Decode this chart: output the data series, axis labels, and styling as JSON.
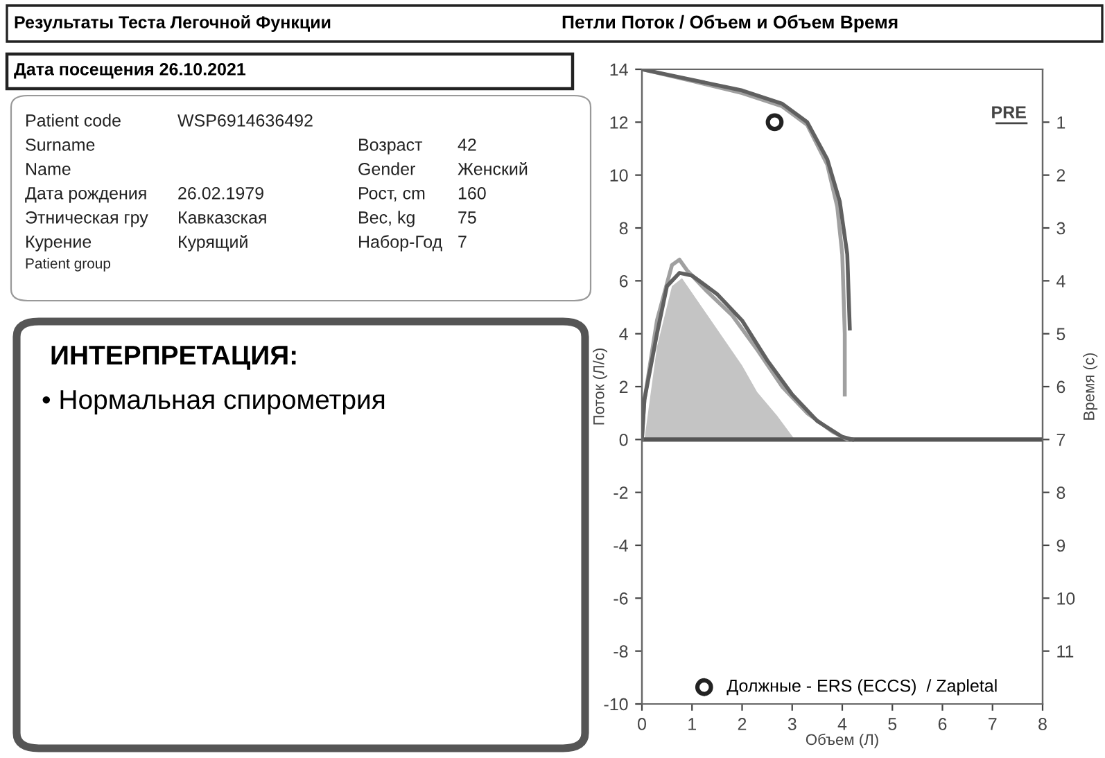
{
  "chart_data": {
    "type": "line",
    "title": "Петли Поток / Объем и Объем Время",
    "xlabel": "Объем (Л)",
    "ylabel": "Поток (Л/с)",
    "y2label": "Время (с)",
    "xlim": [
      0,
      8
    ],
    "xticks": [
      0,
      1,
      2,
      3,
      4,
      5,
      6,
      7,
      8
    ],
    "ylim": [
      -10,
      14
    ],
    "yticks": [
      -10,
      -8,
      -6,
      -4,
      -2,
      0,
      2,
      4,
      6,
      8,
      10,
      12,
      14
    ],
    "y2lim": [
      12,
      0
    ],
    "y2ticks": [
      1,
      2,
      3,
      4,
      5,
      6,
      7,
      8,
      9,
      10,
      11
    ],
    "grid": false,
    "legend": "bottom",
    "marker": "none",
    "line_style": "solid",
    "ref_lines": [
      {
        "axis": "y",
        "value": 0,
        "color": "#555555"
      }
    ],
    "series": [
      {
        "type": "area",
        "color": "#c4c4c4",
        "x": [
          0.05,
          0.3,
          0.6,
          0.8,
          1.2,
          1.6,
          2.0,
          2.3,
          2.7,
          3.05
        ],
        "values": [
          0,
          3.5,
          5.8,
          6.1,
          5.0,
          3.9,
          2.8,
          1.8,
          0.9,
          0
        ]
      },
      {
        "color": "#a0a0a0",
        "x": [
          0,
          0.05,
          0.3,
          0.6,
          0.75,
          0.9,
          1.3,
          1.8,
          2.3,
          2.8,
          3.3,
          3.8,
          4.1
        ],
        "values": [
          0,
          1.5,
          4.5,
          6.6,
          6.8,
          6.4,
          5.6,
          4.7,
          3.4,
          2.0,
          1.0,
          0.3,
          0
        ]
      },
      {
        "color": "#606060",
        "x": [
          0,
          0.05,
          0.3,
          0.5,
          0.75,
          1.0,
          1.5,
          2.0,
          2.5,
          3.0,
          3.5,
          4.0,
          4.2
        ],
        "values": [
          0,
          1.5,
          4.0,
          5.8,
          6.3,
          6.2,
          5.5,
          4.5,
          3.0,
          1.7,
          0.7,
          0.1,
          0
        ]
      },
      {
        "axis": "y2",
        "color": "#a0a0a0",
        "x": [
          0,
          1,
          2,
          2.8,
          3.3,
          3.7,
          3.9,
          4.0,
          4.05,
          4.05
        ],
        "values": [
          0,
          0.22,
          0.45,
          0.7,
          1.05,
          1.8,
          2.6,
          3.5,
          5,
          6.15
        ]
      },
      {
        "axis": "y2",
        "color": "#606060",
        "x": [
          0,
          1,
          2,
          2.8,
          3.3,
          3.7,
          3.95,
          4.1,
          4.15
        ],
        "values": [
          0,
          0.2,
          0.4,
          0.65,
          1,
          1.7,
          2.5,
          3.5,
          4.9
        ]
      },
      {
        "type": "scatter",
        "name": "Должные - ERS (ECCS)  / Zapletal",
        "marker": "circle",
        "color": "#222222",
        "x": [
          2.65
        ],
        "values": [
          12
        ]
      }
    ],
    "annotations": [
      "Результаты Теста Легочной Функции",
      "Дата посещения 26.10.2021",
      "PRE",
      "ИНТЕРПРЕТАЦИЯ:",
      "• Нормальная спирометрия",
      "Patient code",
      "WSP6914636492",
      "Surname",
      "Возраст",
      "42",
      "Name",
      "Gender",
      "Женский",
      "Дата рождения",
      "26.02.1979",
      "Рост, cm",
      "160",
      "Этническая гру",
      "Кавказская",
      "Вес, kg",
      "75",
      "Курение",
      "Курящий",
      "Набор-Год",
      "7",
      "Patient group"
    ]
  }
}
